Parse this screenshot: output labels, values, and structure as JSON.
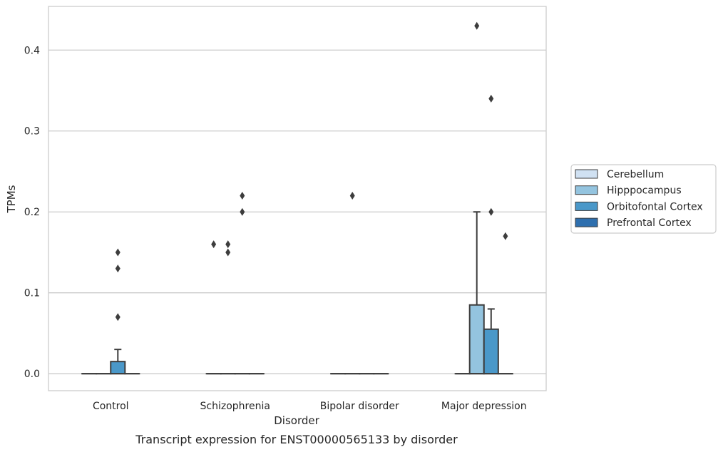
{
  "chart_data": {
    "type": "box",
    "title": "",
    "caption": "Transcript expression for ENST00000565133 by disorder",
    "xlabel": "Disorder",
    "ylabel": "TPMs",
    "ylim": [
      -0.021,
      0.454
    ],
    "yticks": [
      0.0,
      0.1,
      0.2,
      0.3,
      0.4
    ],
    "ytick_labels": [
      "0.0",
      "0.1",
      "0.2",
      "0.3",
      "0.4"
    ],
    "grid": "horizontal",
    "legend_position": "right",
    "categories": [
      "Control",
      "Schizophrenia",
      "Bipolar disorder",
      "Major depression"
    ],
    "series": [
      {
        "name": "Cerebellum",
        "color": "#d0e1f2",
        "boxes": [
          {
            "category": "Control",
            "q1": 0,
            "median": 0,
            "q3": 0,
            "whisker_low": 0,
            "whisker_high": 0,
            "outliers": []
          },
          {
            "category": "Schizophrenia",
            "q1": 0,
            "median": 0,
            "q3": 0,
            "whisker_low": 0,
            "whisker_high": 0,
            "outliers": [
              0.16
            ]
          },
          {
            "category": "Bipolar disorder",
            "q1": 0,
            "median": 0,
            "q3": 0,
            "whisker_low": 0,
            "whisker_high": 0,
            "outliers": []
          },
          {
            "category": "Major depression",
            "q1": 0,
            "median": 0,
            "q3": 0,
            "whisker_low": 0,
            "whisker_high": 0,
            "outliers": []
          }
        ]
      },
      {
        "name": "Hipppocampus",
        "color": "#94c4df",
        "boxes": [
          {
            "category": "Control",
            "q1": 0,
            "median": 0,
            "q3": 0,
            "whisker_low": 0,
            "whisker_high": 0,
            "outliers": []
          },
          {
            "category": "Schizophrenia",
            "q1": 0,
            "median": 0,
            "q3": 0,
            "whisker_low": 0,
            "whisker_high": 0,
            "outliers": [
              0.16,
              0.15
            ]
          },
          {
            "category": "Bipolar disorder",
            "q1": 0,
            "median": 0,
            "q3": 0,
            "whisker_low": 0,
            "whisker_high": 0,
            "outliers": [
              0.22
            ]
          },
          {
            "category": "Major depression",
            "q1": 0,
            "median": 0,
            "q3": 0.085,
            "whisker_low": 0,
            "whisker_high": 0.2,
            "outliers": [
              0.43
            ]
          }
        ]
      },
      {
        "name": "Orbitofontal Cortex",
        "color": "#4a98c9",
        "boxes": [
          {
            "category": "Control",
            "q1": 0,
            "median": 0,
            "q3": 0.015,
            "whisker_low": 0,
            "whisker_high": 0.03,
            "outliers": [
              0.15,
              0.13,
              0.07
            ]
          },
          {
            "category": "Schizophrenia",
            "q1": 0,
            "median": 0,
            "q3": 0,
            "whisker_low": 0,
            "whisker_high": 0,
            "outliers": [
              0.22,
              0.2
            ]
          },
          {
            "category": "Bipolar disorder",
            "q1": 0,
            "median": 0,
            "q3": 0,
            "whisker_low": 0,
            "whisker_high": 0,
            "outliers": []
          },
          {
            "category": "Major depression",
            "q1": 0,
            "median": 0,
            "q3": 0.055,
            "whisker_low": 0,
            "whisker_high": 0.08,
            "outliers": [
              0.34,
              0.2
            ]
          }
        ]
      },
      {
        "name": "Prefrontal Cortex",
        "color": "#2e6fae",
        "boxes": [
          {
            "category": "Control",
            "q1": 0,
            "median": 0,
            "q3": 0,
            "whisker_low": 0,
            "whisker_high": 0,
            "outliers": []
          },
          {
            "category": "Schizophrenia",
            "q1": 0,
            "median": 0,
            "q3": 0,
            "whisker_low": 0,
            "whisker_high": 0,
            "outliers": []
          },
          {
            "category": "Bipolar disorder",
            "q1": 0,
            "median": 0,
            "q3": 0,
            "whisker_low": 0,
            "whisker_high": 0,
            "outliers": []
          },
          {
            "category": "Major depression",
            "q1": 0,
            "median": 0,
            "q3": 0,
            "whisker_low": 0,
            "whisker_high": 0,
            "outliers": [
              0.17
            ]
          }
        ]
      }
    ],
    "colors": {
      "box_edge": "#3d3d3d",
      "grid": "#cccccc",
      "frame": "#cccccc",
      "outlier": "#3d3d3d",
      "legend_edge": "#cccccc"
    }
  }
}
